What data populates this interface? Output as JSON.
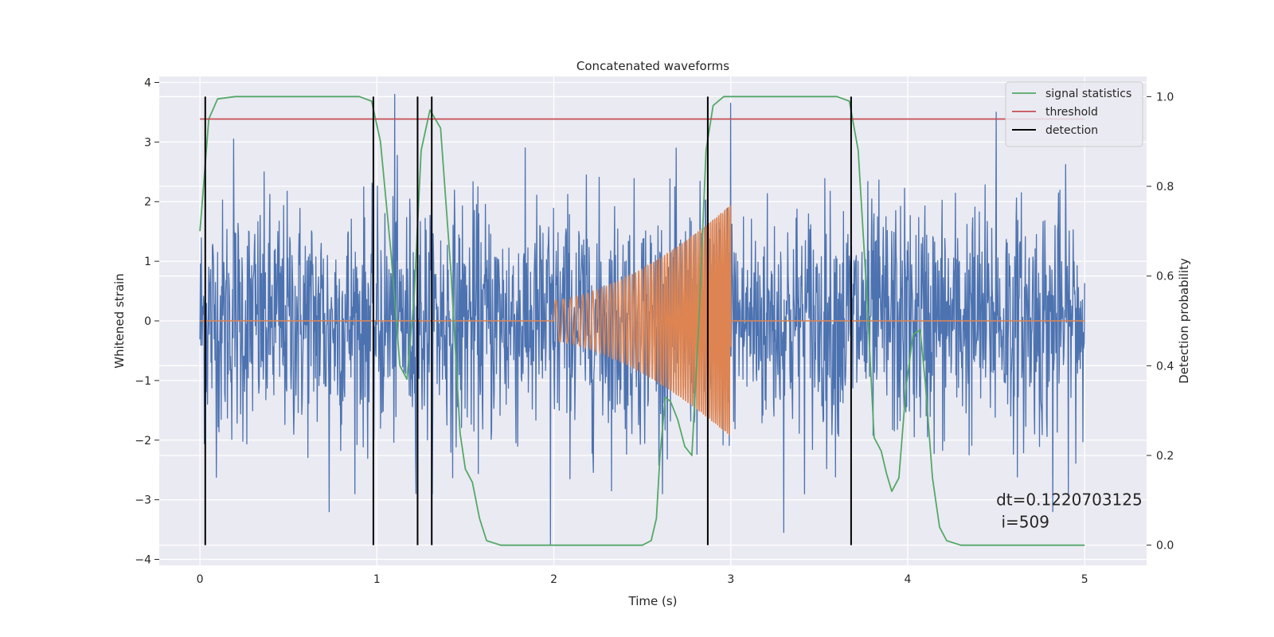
{
  "chart_data": {
    "type": "line",
    "title": "Concatenated waveforms",
    "xlabel": "Time (s)",
    "ylabel": "Whitened strain",
    "y2label": "Detection probability",
    "xlim": [
      -0.23,
      5.35
    ],
    "ylim": [
      -4.1,
      4.1
    ],
    "y2lim": [
      -0.045,
      1.045
    ],
    "x_ticks": [
      0,
      1,
      2,
      3,
      4,
      5
    ],
    "y_ticks": [
      -4,
      -3,
      -2,
      -1,
      0,
      1,
      2,
      3,
      4
    ],
    "y2_ticks": [
      0.0,
      0.2,
      0.4,
      0.6,
      0.8,
      1.0
    ],
    "grid": true,
    "legend_position": "upper right",
    "annotation": {
      "text_lines": [
        "dt=0.1220703125",
        " i=509"
      ],
      "x": 4.5,
      "y": -3.0
    },
    "series": [
      {
        "name": "",
        "axis": "left",
        "color": "#4c72b0",
        "kind": "noise",
        "x_range": [
          0,
          5
        ],
        "samples": 2000,
        "sigma": 1.0,
        "extremes": [
          [
            1.1,
            3.8
          ],
          [
            3.0,
            3.65
          ],
          [
            0.19,
            3.05
          ],
          [
            1.98,
            -3.75
          ],
          [
            0.73,
            -3.2
          ],
          [
            3.3,
            -3.55
          ],
          [
            4.5,
            3.5
          ],
          [
            4.82,
            -3.2
          ]
        ]
      },
      {
        "name": "",
        "axis": "left",
        "color": "#dd8452",
        "kind": "chirp",
        "x_range": [
          0,
          5
        ],
        "chirp_start": 2.0,
        "chirp_end": 3.0,
        "amp_start": 0.35,
        "amp_end": 1.95,
        "freq_start_hz": 20,
        "freq_end_hz": 95
      },
      {
        "name": "signal statistics",
        "axis": "right",
        "color": "#55a868",
        "points": [
          [
            0,
            0.7
          ],
          [
            0.02,
            0.8
          ],
          [
            0.05,
            0.95
          ],
          [
            0.1,
            0.995
          ],
          [
            0.2,
            1.0
          ],
          [
            0.9,
            1.0
          ],
          [
            0.97,
            0.99
          ],
          [
            1.02,
            0.9
          ],
          [
            1.08,
            0.65
          ],
          [
            1.13,
            0.4
          ],
          [
            1.17,
            0.37
          ],
          [
            1.21,
            0.55
          ],
          [
            1.25,
            0.88
          ],
          [
            1.3,
            0.97
          ],
          [
            1.36,
            0.93
          ],
          [
            1.42,
            0.6
          ],
          [
            1.47,
            0.25
          ],
          [
            1.5,
            0.17
          ],
          [
            1.54,
            0.14
          ],
          [
            1.58,
            0.06
          ],
          [
            1.62,
            0.01
          ],
          [
            1.7,
            0.0
          ],
          [
            2.5,
            0.0
          ],
          [
            2.55,
            0.01
          ],
          [
            2.58,
            0.06
          ],
          [
            2.6,
            0.2
          ],
          [
            2.63,
            0.33
          ],
          [
            2.66,
            0.32
          ],
          [
            2.7,
            0.28
          ],
          [
            2.74,
            0.22
          ],
          [
            2.78,
            0.2
          ],
          [
            2.82,
            0.5
          ],
          [
            2.86,
            0.88
          ],
          [
            2.9,
            0.98
          ],
          [
            2.96,
            1.0
          ],
          [
            3.6,
            1.0
          ],
          [
            3.67,
            0.99
          ],
          [
            3.72,
            0.88
          ],
          [
            3.77,
            0.55
          ],
          [
            3.81,
            0.24
          ],
          [
            3.85,
            0.21
          ],
          [
            3.88,
            0.16
          ],
          [
            3.91,
            0.12
          ],
          [
            3.95,
            0.15
          ],
          [
            3.99,
            0.35
          ],
          [
            4.03,
            0.47
          ],
          [
            4.07,
            0.48
          ],
          [
            4.1,
            0.36
          ],
          [
            4.14,
            0.15
          ],
          [
            4.18,
            0.04
          ],
          [
            4.22,
            0.01
          ],
          [
            4.3,
            0.0
          ],
          [
            5.0,
            0.0
          ]
        ]
      },
      {
        "name": "threshold",
        "axis": "right",
        "color": "#c44e52",
        "points": [
          [
            0,
            0.95
          ],
          [
            5,
            0.95
          ]
        ]
      },
      {
        "name": "detection",
        "axis": "right",
        "color": "#000000",
        "kind": "vlines",
        "x": [
          0.03,
          0.98,
          1.23,
          1.31,
          2.87,
          3.68
        ],
        "y_range": [
          0,
          1
        ]
      }
    ]
  }
}
